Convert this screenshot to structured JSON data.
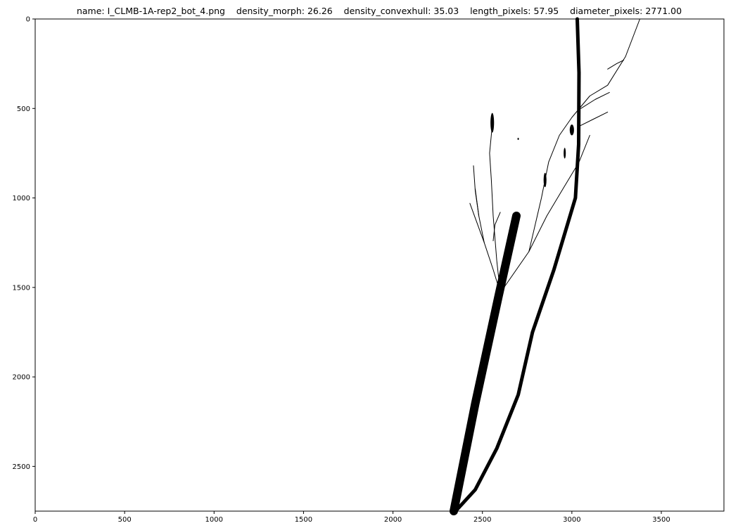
{
  "chart_data": {
    "type": "image",
    "title": "name: I_CLMB-1A-rep2_bot_4.png    density_morph: 26.26    density_convexhull: 35.03    length_pixels: 57.95    diameter_pixels: 2771.00",
    "xlim": [
      0,
      3850
    ],
    "ylim": [
      2750,
      0
    ],
    "xticks": [
      0,
      500,
      1000,
      1500,
      2000,
      2500,
      3000,
      3500
    ],
    "yticks": [
      0,
      500,
      1000,
      1500,
      2000,
      2500
    ],
    "xtick_labels": [
      "0",
      "500",
      "1000",
      "1500",
      "2000",
      "2500",
      "3000",
      "3500"
    ],
    "ytick_labels": [
      "0",
      "500",
      "1000",
      "1500",
      "2000",
      "2500"
    ],
    "background": "#ffffff",
    "foreground": "#000000",
    "strokes": [
      {
        "name": "main-stem",
        "width": 5,
        "points": [
          [
            3030,
            0
          ],
          [
            3040,
            300
          ],
          [
            3038,
            700
          ],
          [
            3020,
            1000
          ],
          [
            2900,
            1400
          ],
          [
            2780,
            1750
          ],
          [
            2700,
            2100
          ],
          [
            2580,
            2400
          ],
          [
            2460,
            2630
          ],
          [
            2350,
            2750
          ]
        ]
      },
      {
        "name": "thick-stem",
        "width": 12,
        "points": [
          [
            2690,
            1100
          ],
          [
            2590,
            1550
          ],
          [
            2460,
            2150
          ],
          [
            2340,
            2750
          ]
        ]
      },
      {
        "name": "branch-right-1",
        "width": 1,
        "points": [
          [
            2600,
            1530
          ],
          [
            2760,
            1300
          ],
          [
            2830,
            1000
          ],
          [
            2870,
            800
          ],
          [
            2930,
            650
          ],
          [
            3000,
            550
          ],
          [
            3100,
            430
          ],
          [
            3200,
            370
          ],
          [
            3300,
            210
          ],
          [
            3380,
            0
          ]
        ]
      },
      {
        "name": "branch-right-2",
        "width": 1,
        "points": [
          [
            2760,
            1300
          ],
          [
            2860,
            1100
          ],
          [
            2950,
            950
          ],
          [
            3040,
            800
          ],
          [
            3100,
            650
          ]
        ]
      },
      {
        "name": "branch-right-3",
        "width": 1,
        "points": [
          [
            3040,
            600
          ],
          [
            3120,
            560
          ],
          [
            3200,
            520
          ]
        ]
      },
      {
        "name": "branch-right-4",
        "width": 1,
        "points": [
          [
            3050,
            500
          ],
          [
            3130,
            450
          ],
          [
            3210,
            410
          ]
        ]
      },
      {
        "name": "branch-right-5",
        "width": 1,
        "points": [
          [
            3200,
            280
          ],
          [
            3250,
            250
          ],
          [
            3290,
            230
          ]
        ]
      },
      {
        "name": "branch-left-1",
        "width": 1,
        "points": [
          [
            2600,
            1530
          ],
          [
            2560,
            1400
          ],
          [
            2510,
            1250
          ],
          [
            2480,
            1100
          ],
          [
            2460,
            950
          ]
        ]
      },
      {
        "name": "branch-left-2",
        "width": 1,
        "points": [
          [
            2600,
            1530
          ],
          [
            2580,
            1350
          ],
          [
            2560,
            1100
          ],
          [
            2550,
            900
          ],
          [
            2540,
            750
          ],
          [
            2560,
            540
          ]
        ]
      },
      {
        "name": "branch-left-3",
        "width": 1,
        "points": [
          [
            2510,
            1250
          ],
          [
            2470,
            1140
          ],
          [
            2430,
            1030
          ]
        ]
      },
      {
        "name": "branch-left-4",
        "width": 1,
        "points": [
          [
            2480,
            1100
          ],
          [
            2460,
            960
          ],
          [
            2450,
            820
          ]
        ]
      },
      {
        "name": "branch-left-5",
        "width": 1,
        "points": [
          [
            2560,
            1240
          ],
          [
            2570,
            1150
          ],
          [
            2600,
            1080
          ]
        ]
      }
    ],
    "blobs": [
      {
        "name": "blob-1",
        "x": 2555,
        "y": 580,
        "rx": 10,
        "ry": 55
      },
      {
        "name": "blob-2",
        "x": 3000,
        "y": 620,
        "rx": 12,
        "ry": 30
      },
      {
        "name": "blob-3",
        "x": 2850,
        "y": 900,
        "rx": 8,
        "ry": 40
      },
      {
        "name": "blob-4",
        "x": 2960,
        "y": 750,
        "rx": 6,
        "ry": 30
      },
      {
        "name": "blob-5",
        "x": 2700,
        "y": 670,
        "rx": 4,
        "ry": 6
      }
    ]
  }
}
